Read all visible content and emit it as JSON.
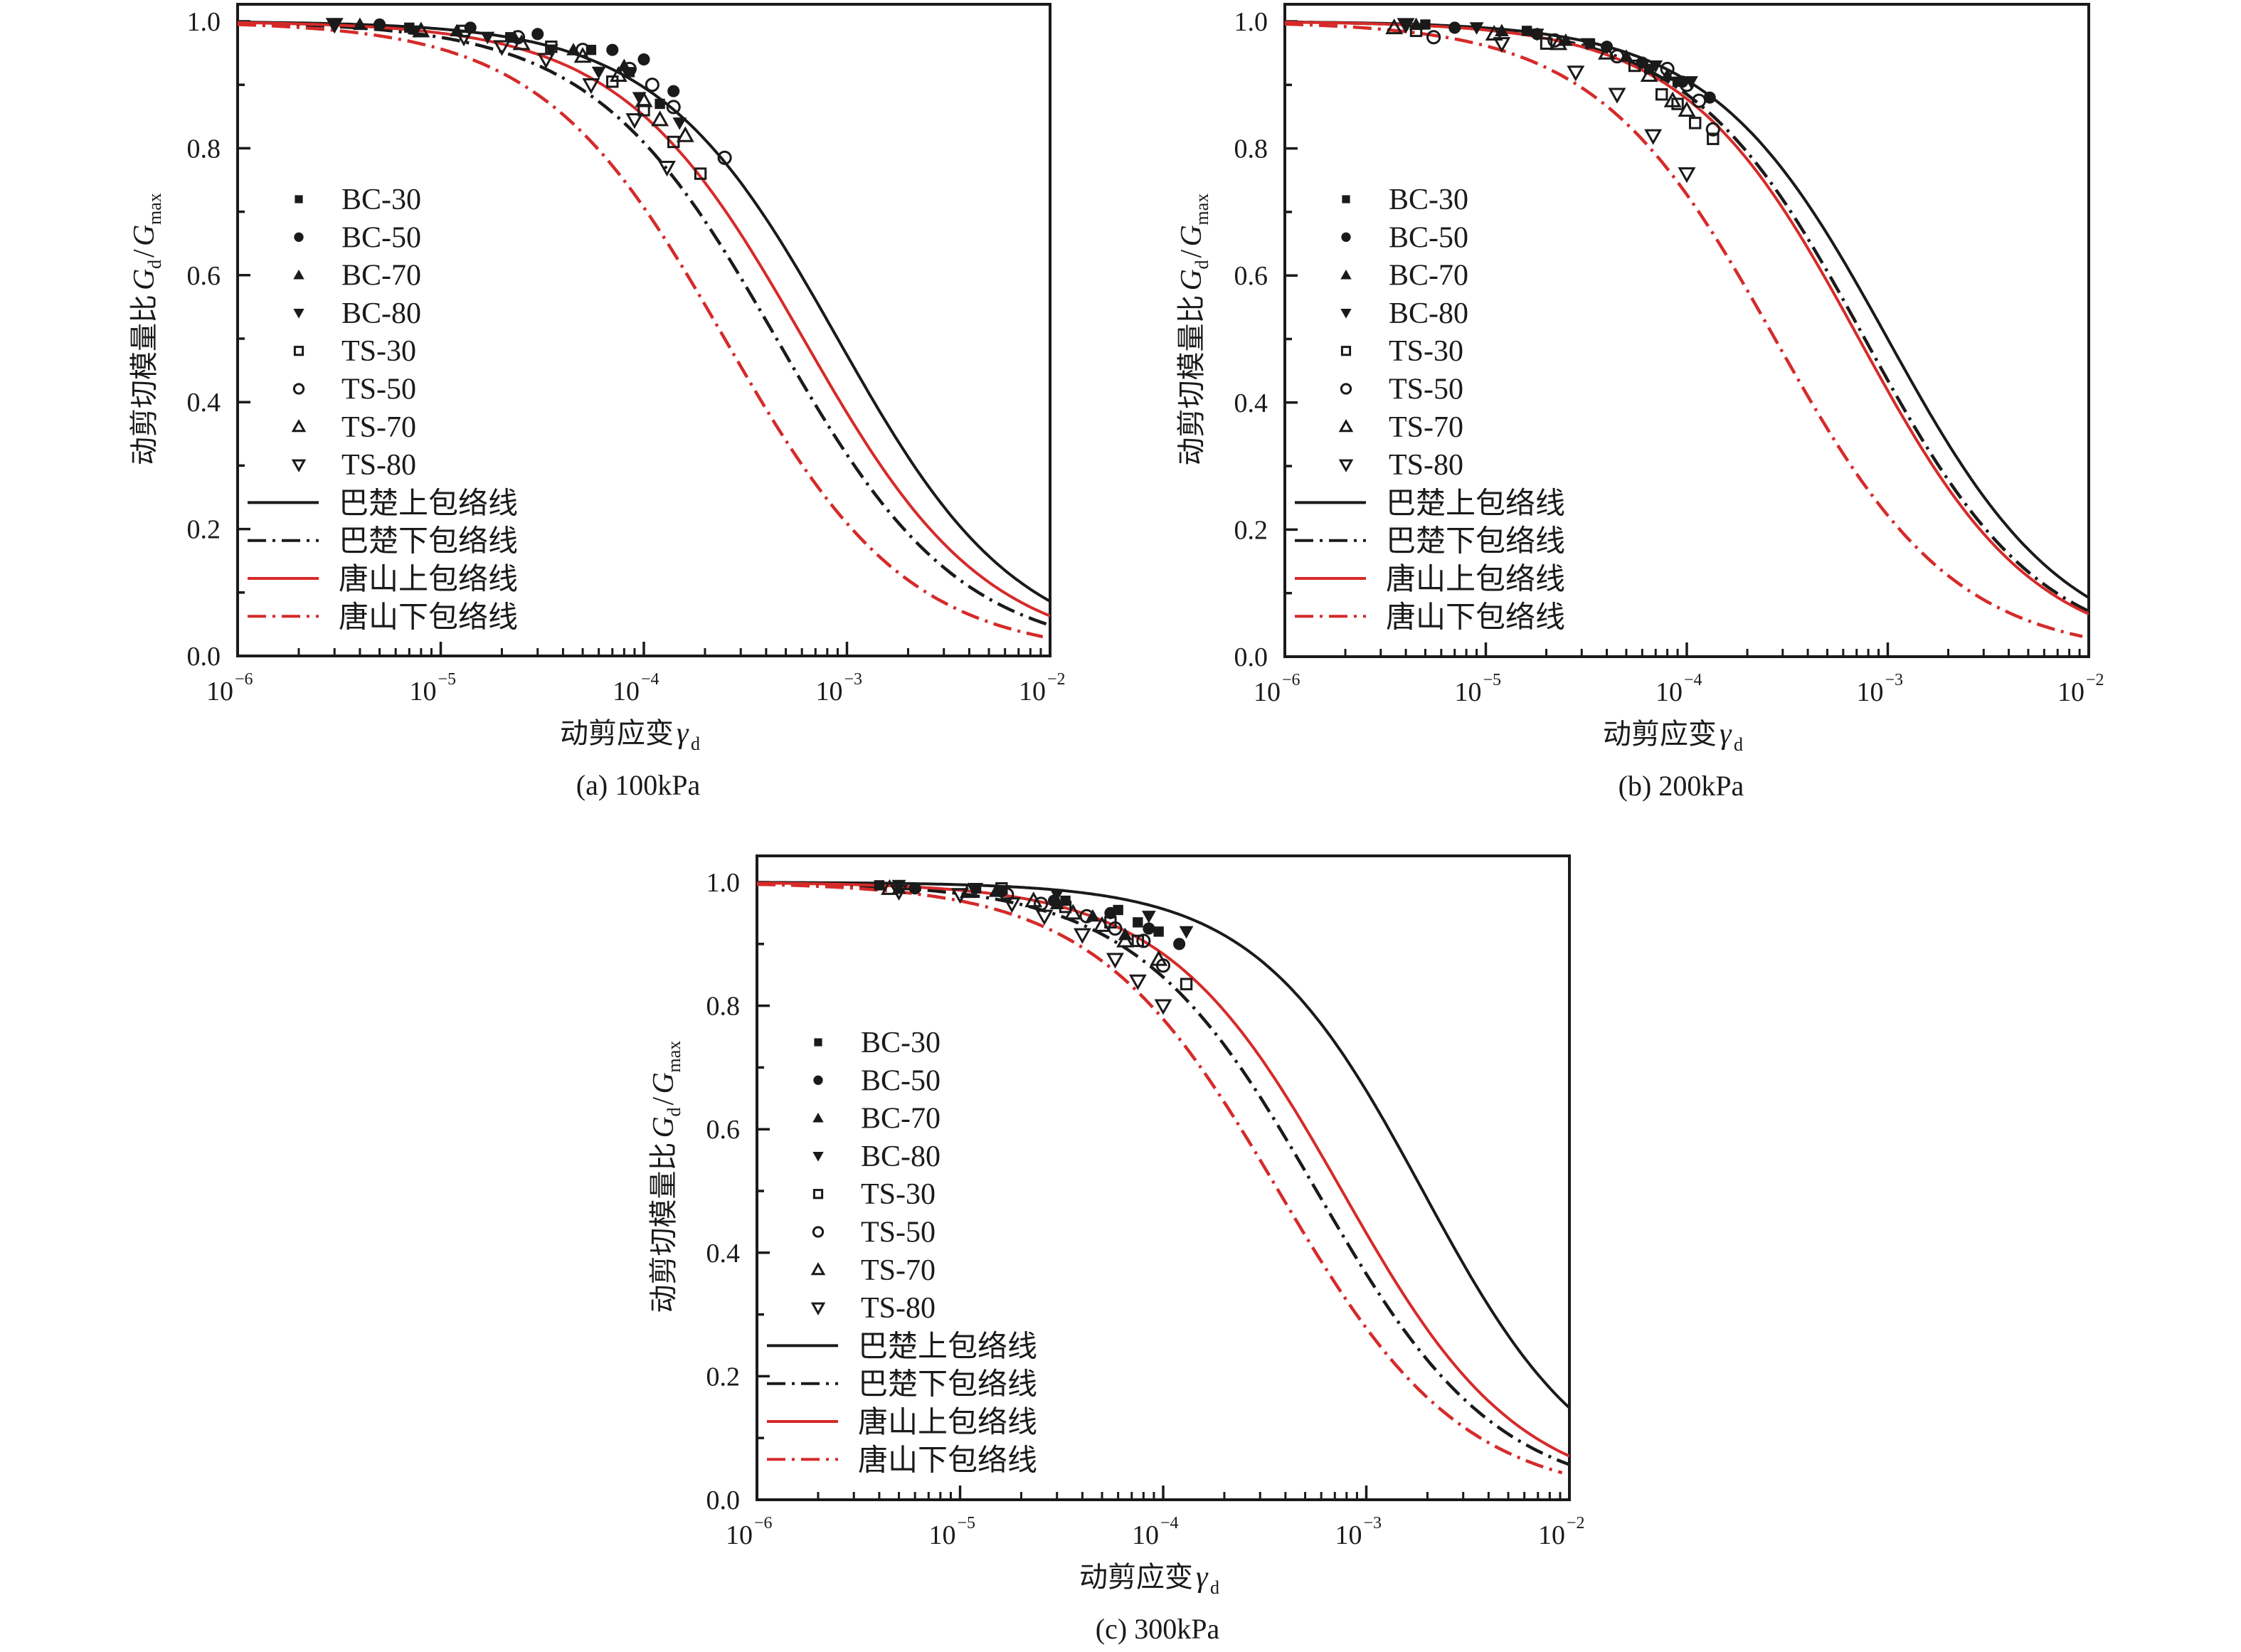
{
  "figure": {
    "y_axis_label_main": "动剪切模量比",
    "y_axis_label_symbol": "G",
    "y_axis_label_sub1": "d",
    "y_axis_label_slash": "/",
    "y_axis_label_sub2": "max",
    "x_axis_label_main": "动剪应变",
    "x_axis_label_symbol": "γ",
    "x_axis_label_sub": "d"
  },
  "chart_data": [
    {
      "id": "a",
      "type": "scatter",
      "title": "(a) 100kPa",
      "xlabel": "动剪应变γd",
      "ylabel": "动剪切模量比Gd/Gmax",
      "xscale": "log",
      "xlim": [
        1e-06,
        0.01
      ],
      "ylim": [
        0.0,
        1.0
      ],
      "xticks": [
        {
          "v": -6,
          "label": "10",
          "exp": "−6"
        },
        {
          "v": -5,
          "label": "10",
          "exp": "−5"
        },
        {
          "v": -4,
          "label": "10",
          "exp": "−4"
        },
        {
          "v": -3,
          "label": "10",
          "exp": "−3"
        },
        {
          "v": -2,
          "label": "10",
          "exp": "−2"
        }
      ],
      "yticks": [
        "0.0",
        "0.2",
        "0.4",
        "0.6",
        "0.8",
        "1.0"
      ],
      "legend_position": "center-left",
      "grid": false,
      "curves": [
        {
          "name": "巴楚上包络线",
          "color": "#1a1a1a",
          "style": "solid",
          "ref_strain": 0.0009,
          "n": 0.98
        },
        {
          "name": "巴楚下包络线",
          "color": "#1a1a1a",
          "style": "dashdot",
          "ref_strain": 0.00045,
          "n": 0.96
        },
        {
          "name": "唐山上包络线",
          "color": "#d62a2a",
          "style": "solid",
          "ref_strain": 0.00061,
          "n": 0.965
        },
        {
          "name": "唐山下包络线",
          "color": "#d62a2a",
          "style": "dashdot",
          "ref_strain": 0.00025,
          "n": 0.96,
          "x_end": 0.0092
        }
      ],
      "series": [
        {
          "name": "BC-30",
          "marker": "square-filled",
          "points": [
            [
              7e-06,
              0.99
            ],
            [
              2.2e-05,
              0.975
            ],
            [
              5.5e-05,
              0.955
            ],
            [
              8.5e-05,
              0.92
            ],
            [
              0.00012,
              0.87
            ]
          ]
        },
        {
          "name": "BC-50",
          "marker": "circle-filled",
          "points": [
            [
              5e-06,
              0.995
            ],
            [
              1.4e-05,
              0.99
            ],
            [
              3e-05,
              0.98
            ],
            [
              7e-05,
              0.955
            ],
            [
              0.0001,
              0.94
            ],
            [
              0.00014,
              0.89
            ]
          ]
        },
        {
          "name": "BC-70",
          "marker": "triangle-up-filled",
          "points": [
            [
              4e-06,
              0.995
            ],
            [
              1.2e-05,
              0.985
            ],
            [
              2.3e-05,
              0.975
            ],
            [
              4.5e-05,
              0.955
            ],
            [
              8e-05,
              0.93
            ]
          ]
        },
        {
          "name": "BC-80",
          "marker": "triangle-down-filled",
          "points": [
            [
              3e-06,
              0.995
            ],
            [
              7.5e-06,
              0.985
            ],
            [
              1.7e-05,
              0.975
            ],
            [
              3.5e-05,
              0.955
            ],
            [
              6e-05,
              0.92
            ],
            [
              9.5e-05,
              0.88
            ],
            [
              0.00015,
              0.84
            ]
          ]
        },
        {
          "name": "TS-30",
          "marker": "square-open",
          "points": [
            [
              1.3e-05,
              0.985
            ],
            [
              3.5e-05,
              0.96
            ],
            [
              7e-05,
              0.905
            ],
            [
              0.0001,
              0.86
            ],
            [
              0.00014,
              0.81
            ],
            [
              0.00019,
              0.76
            ]
          ]
        },
        {
          "name": "TS-50",
          "marker": "circle-open",
          "points": [
            [
              2.4e-05,
              0.975
            ],
            [
              5e-05,
              0.955
            ],
            [
              8.5e-05,
              0.925
            ],
            [
              0.00011,
              0.9
            ],
            [
              0.00014,
              0.865
            ],
            [
              0.00025,
              0.785
            ]
          ]
        },
        {
          "name": "TS-70",
          "marker": "triangle-up-open",
          "points": [
            [
              8e-06,
              0.985
            ],
            [
              2.5e-05,
              0.965
            ],
            [
              5e-05,
              0.945
            ],
            [
              7.5e-05,
              0.915
            ],
            [
              0.0001,
              0.875
            ],
            [
              0.00012,
              0.845
            ],
            [
              0.00016,
              0.82
            ]
          ]
        },
        {
          "name": "TS-80",
          "marker": "triangle-down-open",
          "points": [
            [
              3e-06,
              0.995
            ],
            [
              1.3e-05,
              0.975
            ],
            [
              2e-05,
              0.96
            ],
            [
              3.3e-05,
              0.94
            ],
            [
              5.5e-05,
              0.9
            ],
            [
              9e-05,
              0.845
            ],
            [
              0.00013,
              0.77
            ]
          ]
        }
      ]
    },
    {
      "id": "b",
      "type": "scatter",
      "title": "(b) 200kPa",
      "xlabel": "动剪应变γd",
      "ylabel": "动剪切模量比Gd/Gmax",
      "xscale": "log",
      "xlim": [
        1e-06,
        0.01
      ],
      "ylim": [
        0.0,
        1.0
      ],
      "xticks": [
        {
          "v": -6,
          "label": "10",
          "exp": "−6"
        },
        {
          "v": -5,
          "label": "10",
          "exp": "−5"
        },
        {
          "v": -4,
          "label": "10",
          "exp": "−4"
        },
        {
          "v": -3,
          "label": "10",
          "exp": "−3"
        },
        {
          "v": -2,
          "label": "10",
          "exp": "−2"
        }
      ],
      "yticks": [
        "0.0",
        "0.2",
        "0.4",
        "0.6",
        "0.8",
        "1.0"
      ],
      "legend_position": "center-left",
      "grid": false,
      "curves": [
        {
          "name": "巴楚上包络线",
          "color": "#1a1a1a",
          "style": "solid",
          "ref_strain": 0.001,
          "n": 0.99
        },
        {
          "name": "巴楚下包络线",
          "color": "#1a1a1a",
          "style": "dashdot",
          "ref_strain": 0.00077,
          "n": 1.0
        },
        {
          "name": "唐山上包络线",
          "color": "#d62a2a",
          "style": "solid",
          "ref_strain": 0.00072,
          "n": 1.0
        },
        {
          "name": "唐山下包络线",
          "color": "#d62a2a",
          "style": "dashdot",
          "ref_strain": 0.000275,
          "n": 0.97,
          "x_end": 0.0093
        }
      ],
      "series": [
        {
          "name": "BC-30",
          "marker": "square-filled",
          "points": [
            [
              5e-06,
              0.995
            ],
            [
              1.6e-05,
              0.985
            ],
            [
              3.3e-05,
              0.965
            ],
            [
              6.5e-05,
              0.925
            ],
            [
              9e-05,
              0.905
            ]
          ]
        },
        {
          "name": "BC-50",
          "marker": "circle-filled",
          "points": [
            [
              7e-06,
              0.99
            ],
            [
              1.8e-05,
              0.98
            ],
            [
              4e-05,
              0.96
            ],
            [
              6e-05,
              0.935
            ],
            [
              9.5e-05,
              0.905
            ],
            [
              0.00013,
              0.88
            ]
          ]
        },
        {
          "name": "BC-70",
          "marker": "triangle-up-filled",
          "points": [
            [
              4.5e-06,
              0.995
            ],
            [
              1.2e-05,
              0.985
            ],
            [
              2.5e-05,
              0.97
            ],
            [
              5e-05,
              0.945
            ],
            [
              8e-05,
              0.915
            ]
          ]
        },
        {
          "name": "BC-80",
          "marker": "triangle-down-filled",
          "points": [
            [
              4e-06,
              0.995
            ],
            [
              9e-06,
              0.99
            ],
            [
              1.8e-05,
              0.98
            ],
            [
              3.2e-05,
              0.965
            ],
            [
              7e-05,
              0.93
            ],
            [
              0.000105,
              0.905
            ]
          ]
        },
        {
          "name": "TS-30",
          "marker": "square-open",
          "points": [
            [
              4.5e-06,
              0.985
            ],
            [
              2e-05,
              0.965
            ],
            [
              5.5e-05,
              0.93
            ],
            [
              7.5e-05,
              0.885
            ],
            [
              9e-05,
              0.87
            ],
            [
              0.00011,
              0.84
            ],
            [
              0.000135,
              0.815
            ]
          ]
        },
        {
          "name": "TS-50",
          "marker": "circle-open",
          "points": [
            [
              5.5e-06,
              0.975
            ],
            [
              2.2e-05,
              0.97
            ],
            [
              4.5e-05,
              0.945
            ],
            [
              8e-05,
              0.925
            ],
            [
              0.0001,
              0.9
            ],
            [
              0.000115,
              0.875
            ],
            [
              0.000135,
              0.83
            ]
          ]
        },
        {
          "name": "TS-70",
          "marker": "triangle-up-open",
          "points": [
            [
              3.5e-06,
              0.99
            ],
            [
              1.1e-05,
              0.98
            ],
            [
              2.3e-05,
              0.965
            ],
            [
              4e-05,
              0.95
            ],
            [
              6.5e-05,
              0.915
            ],
            [
              8.5e-05,
              0.875
            ],
            [
              0.0001,
              0.86
            ]
          ]
        },
        {
          "name": "TS-80",
          "marker": "triangle-down-open",
          "points": [
            [
              4e-06,
              0.995
            ],
            [
              1.2e-05,
              0.965
            ],
            [
              2.8e-05,
              0.92
            ],
            [
              4.5e-05,
              0.885
            ],
            [
              6.8e-05,
              0.82
            ],
            [
              0.0001,
              0.76
            ]
          ]
        }
      ]
    },
    {
      "id": "c",
      "type": "scatter",
      "title": "(c) 300kPa",
      "xlabel": "动剪应变γd",
      "ylabel": "动剪切模量比Gd/Gmax",
      "xscale": "log",
      "xlim": [
        1e-06,
        0.01
      ],
      "ylim": [
        0.0,
        1.0
      ],
      "xticks": [
        {
          "v": -6,
          "label": "10",
          "exp": "−6"
        },
        {
          "v": -5,
          "label": "10",
          "exp": "−5"
        },
        {
          "v": -4,
          "label": "10",
          "exp": "−4"
        },
        {
          "v": -3,
          "label": "10",
          "exp": "−3"
        },
        {
          "v": -2,
          "label": "10",
          "exp": "−2"
        }
      ],
      "yticks": [
        "0.0",
        "0.2",
        "0.4",
        "0.6",
        "0.8",
        "1.0"
      ],
      "legend_position": "center-left",
      "grid": false,
      "curves": [
        {
          "name": "巴楚上包络线",
          "color": "#1a1a1a",
          "style": "solid",
          "ref_strain": 0.0019,
          "n": 1.05
        },
        {
          "name": "巴楚下包络线",
          "color": "#1a1a1a",
          "style": "dashdot",
          "ref_strain": 0.00057,
          "n": 0.98
        },
        {
          "name": "唐山上包络线",
          "color": "#d62a2a",
          "style": "solid",
          "ref_strain": 0.00076,
          "n": 1.0
        },
        {
          "name": "唐山下包络线",
          "color": "#d62a2a",
          "style": "dashdot",
          "ref_strain": 0.00037,
          "n": 0.96,
          "x_end": 0.0092
        }
      ],
      "series": [
        {
          "name": "BC-30",
          "marker": "square-filled",
          "points": [
            [
              4e-06,
              0.995
            ],
            [
              1.2e-05,
              0.99
            ],
            [
              3.3e-05,
              0.97
            ],
            [
              6e-05,
              0.955
            ],
            [
              7.5e-05,
              0.935
            ],
            [
              9.5e-05,
              0.92
            ]
          ]
        },
        {
          "name": "BC-50",
          "marker": "circle-filled",
          "points": [
            [
              6e-06,
              0.99
            ],
            [
              1.6e-05,
              0.985
            ],
            [
              2.9e-05,
              0.97
            ],
            [
              5.5e-05,
              0.95
            ],
            [
              8.5e-05,
              0.925
            ],
            [
              0.00012,
              0.9
            ]
          ]
        },
        {
          "name": "BC-70",
          "marker": "triangle-up-filled",
          "points": [
            [
              5e-06,
              0.99
            ],
            [
              1.5e-05,
              0.985
            ],
            [
              3e-05,
              0.965
            ],
            [
              4.5e-05,
              0.945
            ],
            [
              6.5e-05,
              0.915
            ]
          ]
        },
        {
          "name": "BC-80",
          "marker": "triangle-down-filled",
          "points": [
            [
              5e-06,
              0.995
            ],
            [
              1.2e-05,
              0.99
            ],
            [
              3e-05,
              0.98
            ],
            [
              8.5e-05,
              0.945
            ],
            [
              0.00013,
              0.92
            ]
          ]
        },
        {
          "name": "TS-30",
          "marker": "square-open",
          "points": [
            [
              1.6e-05,
              0.99
            ],
            [
              3.3e-05,
              0.96
            ],
            [
              5.5e-05,
              0.935
            ],
            [
              7.5e-05,
              0.905
            ],
            [
              0.00013,
              0.835
            ]
          ]
        },
        {
          "name": "TS-50",
          "marker": "circle-open",
          "points": [
            [
              1.7e-05,
              0.98
            ],
            [
              2.5e-05,
              0.965
            ],
            [
              4.2e-05,
              0.945
            ],
            [
              5.8e-05,
              0.925
            ],
            [
              8e-05,
              0.905
            ],
            [
              0.0001,
              0.865
            ]
          ]
        },
        {
          "name": "TS-70",
          "marker": "triangle-up-open",
          "points": [
            [
              4.5e-06,
              0.99
            ],
            [
              1.1e-05,
              0.985
            ],
            [
              2.3e-05,
              0.97
            ],
            [
              3.6e-05,
              0.95
            ],
            [
              5e-05,
              0.93
            ],
            [
              6.5e-05,
              0.905
            ],
            [
              9.5e-05,
              0.875
            ]
          ]
        },
        {
          "name": "TS-80",
          "marker": "triangle-down-open",
          "points": [
            [
              5e-06,
              0.985
            ],
            [
              1e-05,
              0.98
            ],
            [
              1.8e-05,
              0.965
            ],
            [
              2.6e-05,
              0.945
            ],
            [
              4e-05,
              0.915
            ],
            [
              5.8e-05,
              0.875
            ],
            [
              7.5e-05,
              0.84
            ],
            [
              0.0001,
              0.8
            ]
          ]
        }
      ]
    }
  ]
}
